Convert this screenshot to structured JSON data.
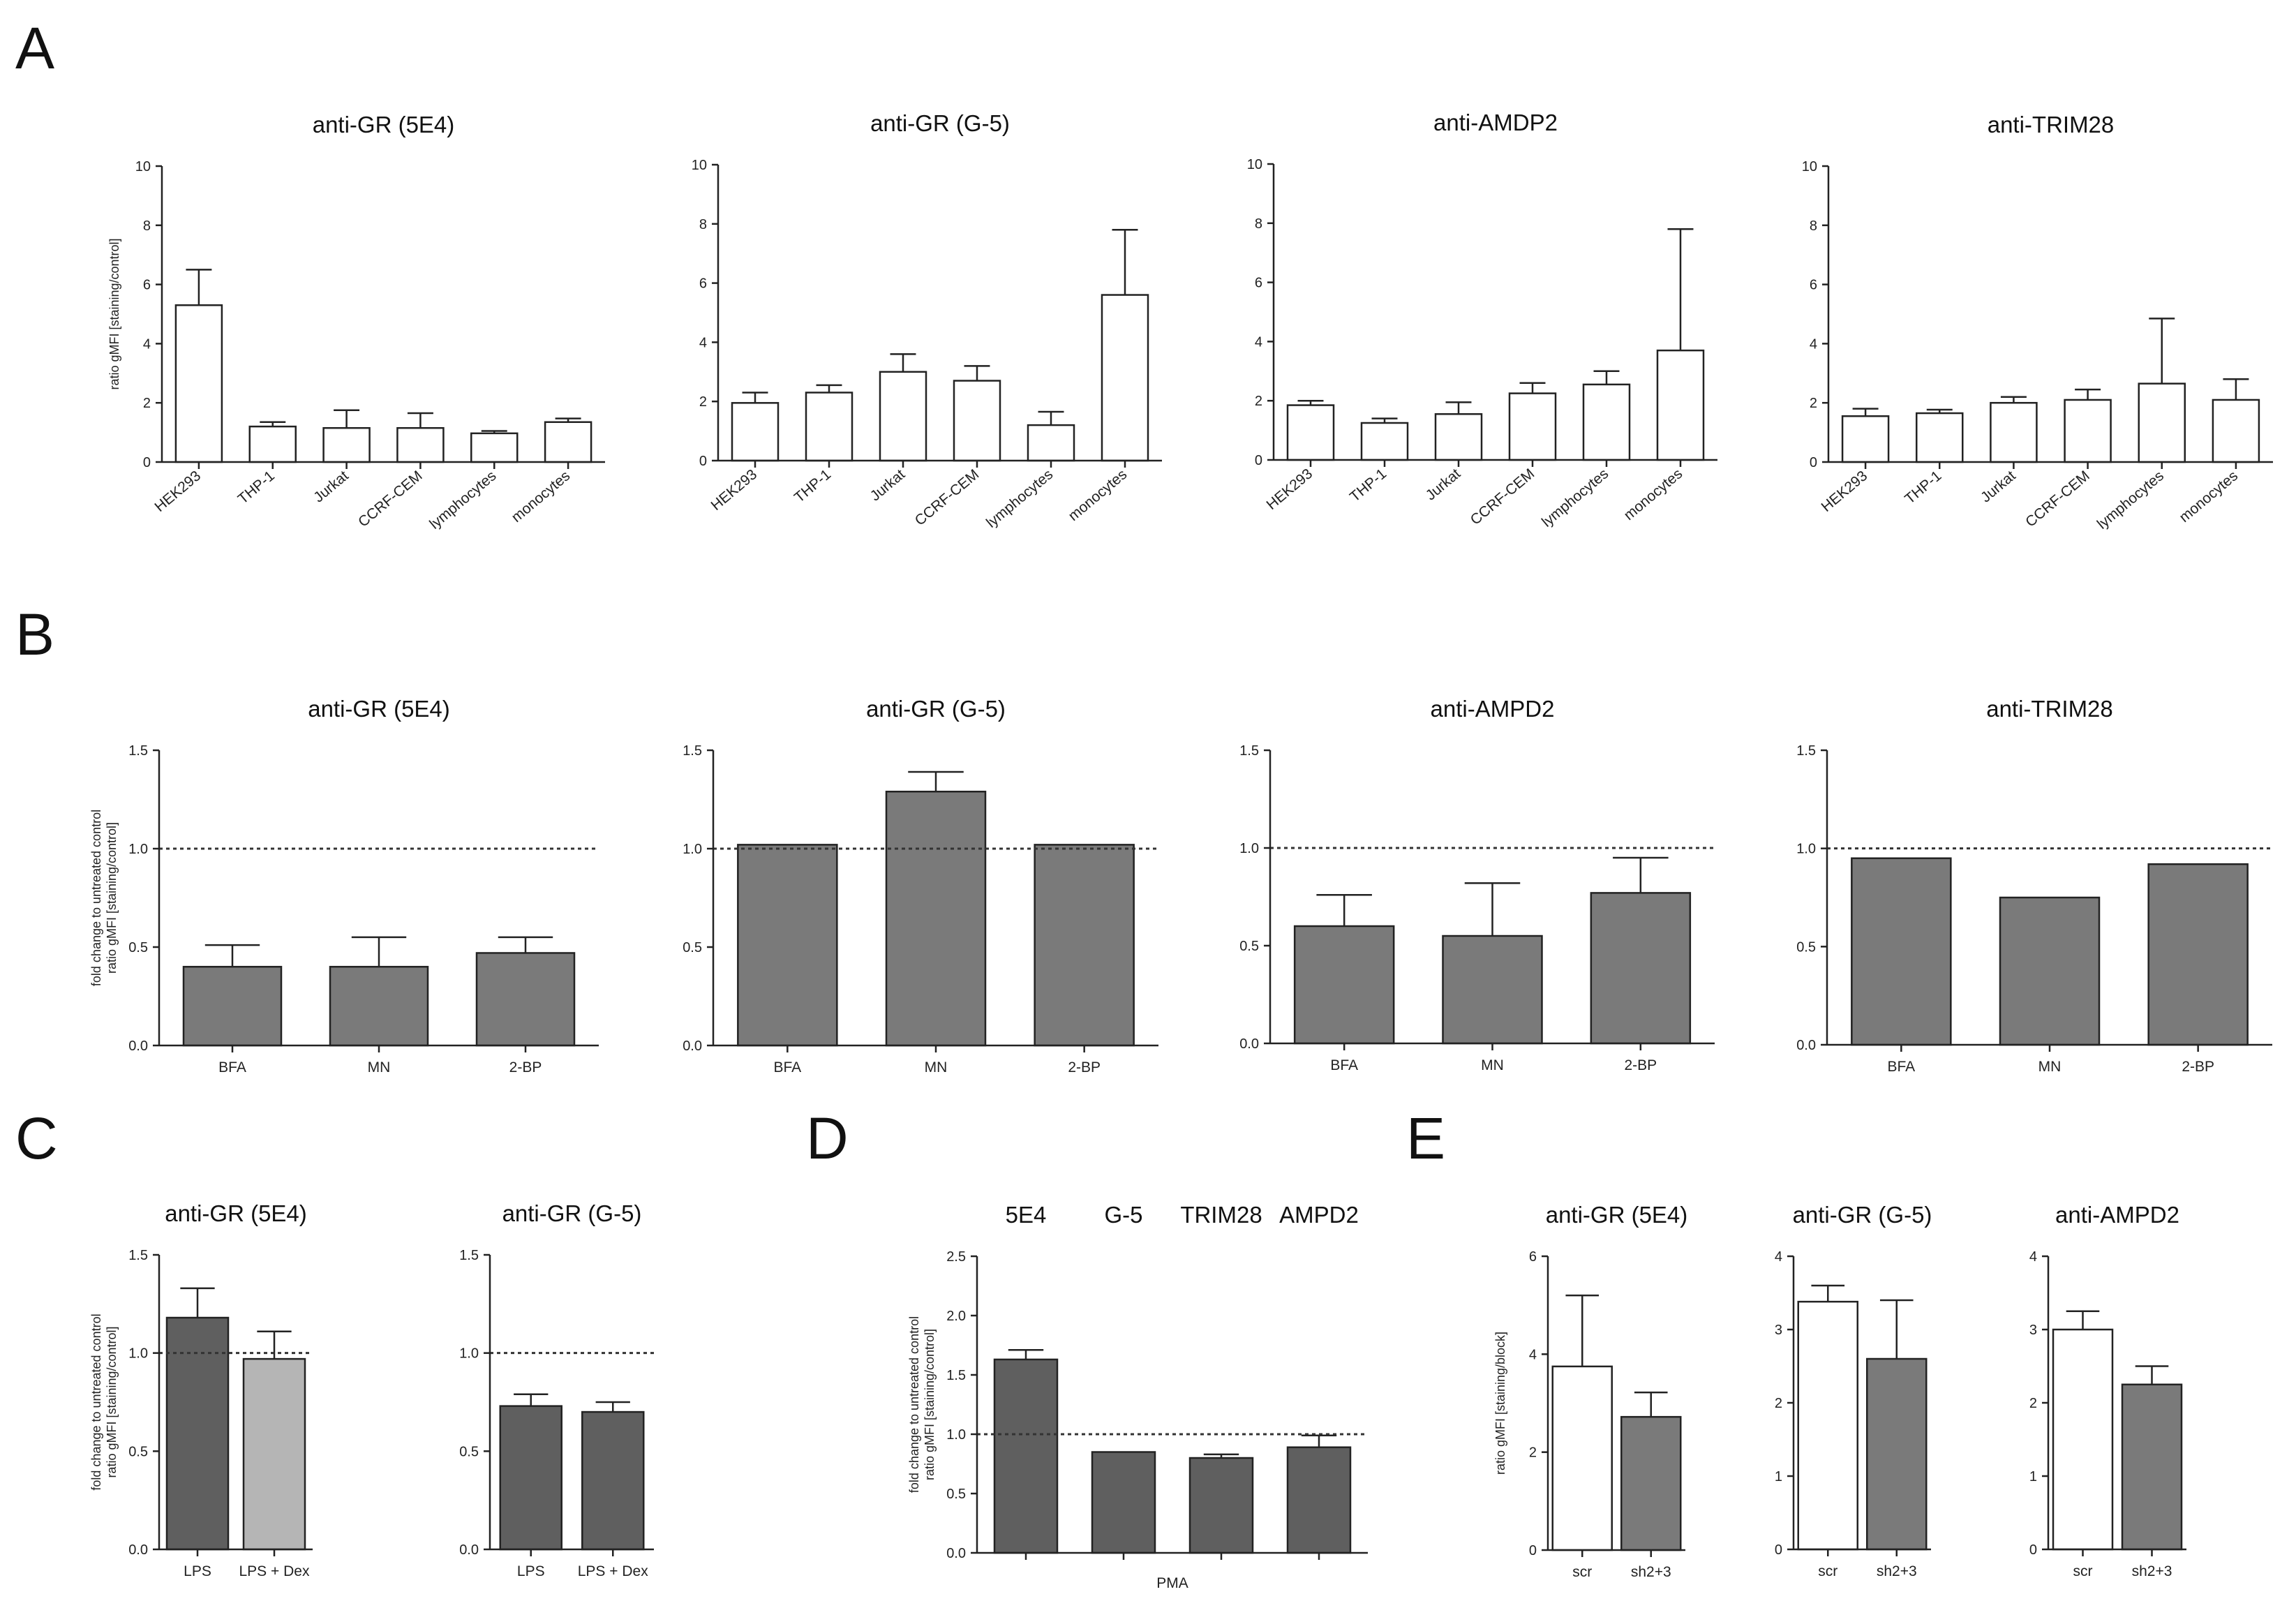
{
  "panel_letters": [
    "A",
    "B",
    "C",
    "D",
    "E"
  ],
  "colors": {
    "white": "#ffffff",
    "gray": "#7a7a7a",
    "dark": "#5f5f5f",
    "light": "#b5b5b5",
    "axis": "#222222"
  },
  "chart_data": [
    {
      "panel": "A",
      "type": "bar",
      "title": "anti-GR (5E4)",
      "ylabel": "ratio gMFI [staining/control]",
      "xlabel": "",
      "categories": [
        "HEK293",
        "THP-1",
        "Jurkat",
        "CCRF-CEM",
        "lymphocytes",
        "monocytes"
      ],
      "values": [
        5.3,
        1.2,
        1.15,
        1.15,
        0.97,
        1.35
      ],
      "errors": [
        1.2,
        0.15,
        0.6,
        0.5,
        0.08,
        0.12
      ],
      "ylim": [
        0,
        10
      ],
      "yticks": [
        "0",
        "2",
        "4",
        "6",
        "8",
        "10"
      ],
      "bar_colors": [
        "white",
        "white",
        "white",
        "white",
        "white",
        "white"
      ],
      "reference_line": null,
      "rotated_labels": true
    },
    {
      "panel": "A",
      "type": "bar",
      "title": "anti-GR (G-5)",
      "ylabel": "",
      "xlabel": "",
      "categories": [
        "HEK293",
        "THP-1",
        "Jurkat",
        "CCRF-CEM",
        "lymphocytes",
        "monocytes"
      ],
      "values": [
        1.95,
        2.3,
        3.0,
        2.7,
        1.2,
        5.6
      ],
      "errors": [
        0.35,
        0.25,
        0.6,
        0.5,
        0.45,
        2.2
      ],
      "ylim": [
        0,
        10
      ],
      "yticks": [
        "0",
        "2",
        "4",
        "6",
        "8",
        "10"
      ],
      "bar_colors": [
        "white",
        "white",
        "white",
        "white",
        "white",
        "white"
      ],
      "reference_line": null,
      "rotated_labels": true
    },
    {
      "panel": "A",
      "type": "bar",
      "title": "anti-AMDP2",
      "ylabel": "",
      "xlabel": "",
      "categories": [
        "HEK293",
        "THP-1",
        "Jurkat",
        "CCRF-CEM",
        "lymphocytes",
        "monocytes"
      ],
      "values": [
        1.85,
        1.25,
        1.55,
        2.25,
        2.55,
        3.7
      ],
      "errors": [
        0.15,
        0.15,
        0.4,
        0.35,
        0.45,
        4.1
      ],
      "ylim": [
        0,
        10
      ],
      "yticks": [
        "0",
        "2",
        "4",
        "6",
        "8",
        "10"
      ],
      "bar_colors": [
        "white",
        "white",
        "white",
        "white",
        "white",
        "white"
      ],
      "reference_line": null,
      "rotated_labels": true
    },
    {
      "panel": "A",
      "type": "bar",
      "title": "anti-TRIM28",
      "ylabel": "",
      "xlabel": "",
      "categories": [
        "HEK293",
        "THP-1",
        "Jurkat",
        "CCRF-CEM",
        "lymphocytes",
        "monocytes"
      ],
      "values": [
        1.55,
        1.65,
        2.0,
        2.1,
        2.65,
        2.1
      ],
      "errors": [
        0.25,
        0.12,
        0.2,
        0.35,
        2.2,
        0.7
      ],
      "ylim": [
        0,
        10
      ],
      "yticks": [
        "0",
        "2",
        "4",
        "6",
        "8",
        "10"
      ],
      "bar_colors": [
        "white",
        "white",
        "white",
        "white",
        "white",
        "white"
      ],
      "reference_line": null,
      "rotated_labels": true
    },
    {
      "panel": "B",
      "type": "bar",
      "title": "anti-GR (5E4)",
      "ylabel": "fold change to untreated control\nratio gMFI [staining/control]",
      "xlabel": "",
      "categories": [
        "BFA",
        "MN",
        "2-BP"
      ],
      "values": [
        0.4,
        0.4,
        0.47
      ],
      "errors": [
        0.11,
        0.15,
        0.08
      ],
      "ylim": [
        0,
        1.5
      ],
      "yticks": [
        "0.0",
        "0.5",
        "1.0",
        "1.5"
      ],
      "bar_colors": [
        "gray",
        "gray",
        "gray"
      ],
      "reference_line": 1.0,
      "rotated_labels": false
    },
    {
      "panel": "B",
      "type": "bar",
      "title": "anti-GR (G-5)",
      "ylabel": "",
      "xlabel": "",
      "categories": [
        "BFA",
        "MN",
        "2-BP"
      ],
      "values": [
        1.02,
        1.29,
        1.02
      ],
      "errors": [
        0,
        0.1,
        0
      ],
      "ylim": [
        0,
        1.5
      ],
      "yticks": [
        "0.0",
        "0.5",
        "1.0",
        "1.5"
      ],
      "bar_colors": [
        "gray",
        "gray",
        "gray"
      ],
      "reference_line": 1.0,
      "rotated_labels": false
    },
    {
      "panel": "B",
      "type": "bar",
      "title": "anti-AMPD2",
      "ylabel": "",
      "xlabel": "",
      "categories": [
        "BFA",
        "MN",
        "2-BP"
      ],
      "values": [
        0.6,
        0.55,
        0.77
      ],
      "errors": [
        0.16,
        0.27,
        0.18
      ],
      "ylim": [
        0,
        1.5
      ],
      "yticks": [
        "0.0",
        "0.5",
        "1.0",
        "1.5"
      ],
      "bar_colors": [
        "gray",
        "gray",
        "gray"
      ],
      "reference_line": 1.0,
      "rotated_labels": false
    },
    {
      "panel": "B",
      "type": "bar",
      "title": "anti-TRIM28",
      "ylabel": "",
      "xlabel": "",
      "categories": [
        "BFA",
        "MN",
        "2-BP"
      ],
      "values": [
        0.95,
        0.75,
        0.92
      ],
      "errors": [
        0,
        0,
        0
      ],
      "ylim": [
        0,
        1.5
      ],
      "yticks": [
        "0.0",
        "0.5",
        "1.0",
        "1.5"
      ],
      "bar_colors": [
        "gray",
        "gray",
        "gray"
      ],
      "reference_line": 1.0,
      "rotated_labels": false
    },
    {
      "panel": "C",
      "type": "bar",
      "title": "anti-GR (5E4)",
      "ylabel": "fold change to untreated control\nratio gMFI [staining/control]",
      "xlabel": "",
      "categories": [
        "LPS",
        "LPS + Dex"
      ],
      "values": [
        1.18,
        0.97
      ],
      "errors": [
        0.15,
        0.14
      ],
      "ylim": [
        0,
        1.5
      ],
      "yticks": [
        "0.0",
        "0.5",
        "1.0",
        "1.5"
      ],
      "bar_colors": [
        "dark",
        "light"
      ],
      "reference_line": 1.0,
      "rotated_labels": false
    },
    {
      "panel": "C",
      "type": "bar",
      "title": "anti-GR (G-5)",
      "ylabel": "",
      "xlabel": "",
      "categories": [
        "LPS",
        "LPS + Dex"
      ],
      "values": [
        0.73,
        0.7
      ],
      "errors": [
        0.06,
        0.05
      ],
      "ylim": [
        0,
        1.5
      ],
      "yticks": [
        "0.0",
        "0.5",
        "1.0",
        "1.5"
      ],
      "bar_colors": [
        "dark",
        "dark"
      ],
      "reference_line": 1.0,
      "rotated_labels": false
    },
    {
      "panel": "D",
      "type": "bar",
      "title": "",
      "ylabel": "fold change to untreated control\nratio gMFI [staining/control]",
      "xlabel": "PMA",
      "column_titles": [
        "5E4",
        "G-5",
        "TRIM28",
        "AMPD2"
      ],
      "categories": [
        "5E4",
        "G-5",
        "TRIM28",
        "AMPD2"
      ],
      "values": [
        1.63,
        0.85,
        0.8,
        0.89
      ],
      "errors": [
        0.08,
        0,
        0.03,
        0.1
      ],
      "ylim": [
        0,
        2.5
      ],
      "yticks": [
        "0.0",
        "0.5",
        "1.0",
        "1.5",
        "2.0",
        "2.5"
      ],
      "bar_colors": [
        "dark",
        "dark",
        "dark",
        "dark"
      ],
      "reference_line": 1.0,
      "rotated_labels": false,
      "hide_category_labels": true
    },
    {
      "panel": "E",
      "type": "bar",
      "title": "anti-GR (5E4)",
      "ylabel": "ratio gMFI [staining/block]",
      "xlabel": "",
      "categories": [
        "scr",
        "sh2+3"
      ],
      "values": [
        3.75,
        2.72
      ],
      "errors": [
        1.45,
        0.5
      ],
      "ylim": [
        0,
        6
      ],
      "yticks": [
        "0",
        "2",
        "4",
        "6"
      ],
      "bar_colors": [
        "white",
        "gray"
      ],
      "reference_line": null,
      "rotated_labels": false
    },
    {
      "panel": "E",
      "type": "bar",
      "title": "anti-GR (G-5)",
      "ylabel": "",
      "xlabel": "",
      "categories": [
        "scr",
        "sh2+3"
      ],
      "values": [
        3.38,
        2.6
      ],
      "errors": [
        0.22,
        0.8
      ],
      "ylim": [
        0,
        4
      ],
      "yticks": [
        "0",
        "1",
        "2",
        "3",
        "4"
      ],
      "bar_colors": [
        "white",
        "gray"
      ],
      "reference_line": null,
      "rotated_labels": false
    },
    {
      "panel": "E",
      "type": "bar",
      "title": "anti-AMPD2",
      "ylabel": "",
      "xlabel": "",
      "categories": [
        "scr",
        "sh2+3"
      ],
      "values": [
        3.0,
        2.25
      ],
      "errors": [
        0.25,
        0.25
      ],
      "ylim": [
        0,
        4
      ],
      "yticks": [
        "0",
        "1",
        "2",
        "3",
        "4"
      ],
      "bar_colors": [
        "white",
        "gray"
      ],
      "reference_line": null,
      "rotated_labels": false
    }
  ]
}
